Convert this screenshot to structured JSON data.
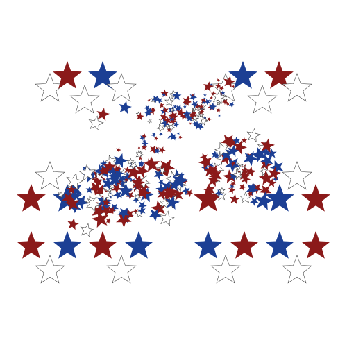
{
  "artwork": {
    "description_visible_text": "",
    "background": "#ffffff",
    "palette": {
      "red": "#8b1a1a",
      "blue": "#1c3f94",
      "white_fill": "#ffffff",
      "white_outline": "#444444"
    },
    "icons": [
      "star-icon"
    ]
  }
}
